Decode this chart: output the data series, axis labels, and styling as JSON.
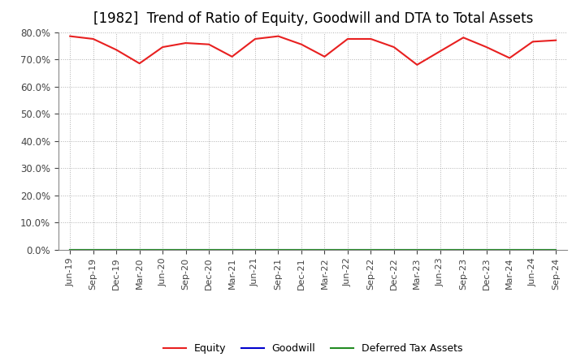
{
  "title": "[1982]  Trend of Ratio of Equity, Goodwill and DTA to Total Assets",
  "x_labels": [
    "Jun-19",
    "Sep-19",
    "Dec-19",
    "Mar-20",
    "Jun-20",
    "Sep-20",
    "Dec-20",
    "Mar-21",
    "Jun-21",
    "Sep-21",
    "Dec-21",
    "Mar-22",
    "Jun-22",
    "Sep-22",
    "Dec-22",
    "Mar-23",
    "Jun-23",
    "Sep-23",
    "Dec-23",
    "Mar-24",
    "Jun-24",
    "Sep-24"
  ],
  "equity": [
    78.5,
    77.5,
    73.5,
    68.5,
    74.5,
    76.0,
    75.5,
    71.0,
    77.5,
    78.5,
    75.5,
    71.0,
    77.5,
    77.5,
    74.5,
    68.0,
    73.0,
    78.0,
    74.5,
    70.5,
    76.5,
    77.0
  ],
  "goodwill": [
    0,
    0,
    0,
    0,
    0,
    0,
    0,
    0,
    0,
    0,
    0,
    0,
    0,
    0,
    0,
    0,
    0,
    0,
    0,
    0,
    0,
    0
  ],
  "dta": [
    0,
    0,
    0,
    0,
    0,
    0,
    0,
    0,
    0,
    0,
    0,
    0,
    0,
    0,
    0,
    0,
    0,
    0,
    0,
    0,
    0,
    0
  ],
  "equity_color": "#e82020",
  "goodwill_color": "#0000cd",
  "dta_color": "#228b22",
  "ylim": [
    0,
    80
  ],
  "yticks": [
    0,
    10,
    20,
    30,
    40,
    50,
    60,
    70,
    80
  ],
  "background_color": "#ffffff",
  "grid_color": "#b0b0b0",
  "title_fontsize": 12,
  "axis_label_fontsize": 8.5,
  "tick_fontsize": 8.0,
  "legend_labels": [
    "Equity",
    "Goodwill",
    "Deferred Tax Assets"
  ],
  "legend_fontsize": 9
}
